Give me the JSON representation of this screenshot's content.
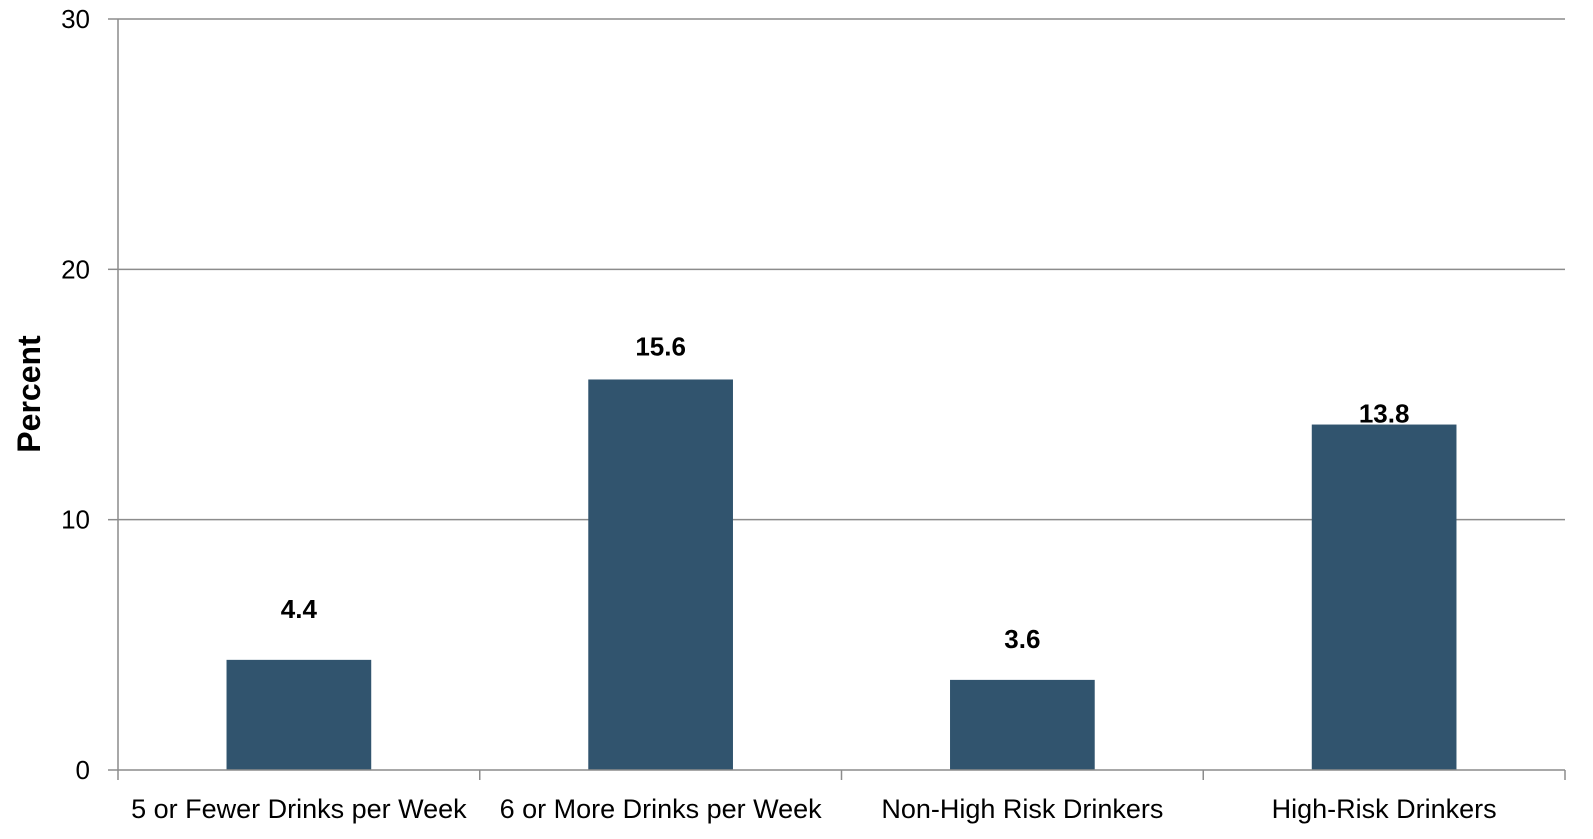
{
  "chart_data": {
    "type": "bar",
    "title": "",
    "xlabel": "",
    "ylabel": "Percent",
    "ylim": [
      0,
      30
    ],
    "yticks": [
      0,
      10,
      20,
      30
    ],
    "ytick_labels": [
      "0",
      "10",
      "20",
      "30"
    ],
    "grid": true,
    "legend": "none",
    "categories": [
      "5 or Fewer Drinks per Week",
      "6 or More Drinks per Week",
      "Non-High Risk Drinkers",
      "High-Risk Drinkers"
    ],
    "values": [
      4.4,
      15.6,
      3.6,
      13.8
    ],
    "data_labels": [
      "4.4",
      "15.6",
      "3.6",
      "13.8"
    ],
    "colors": {
      "bar": "#31546e",
      "grid": "#8c8c8c",
      "axis": "#8c8c8c"
    }
  }
}
